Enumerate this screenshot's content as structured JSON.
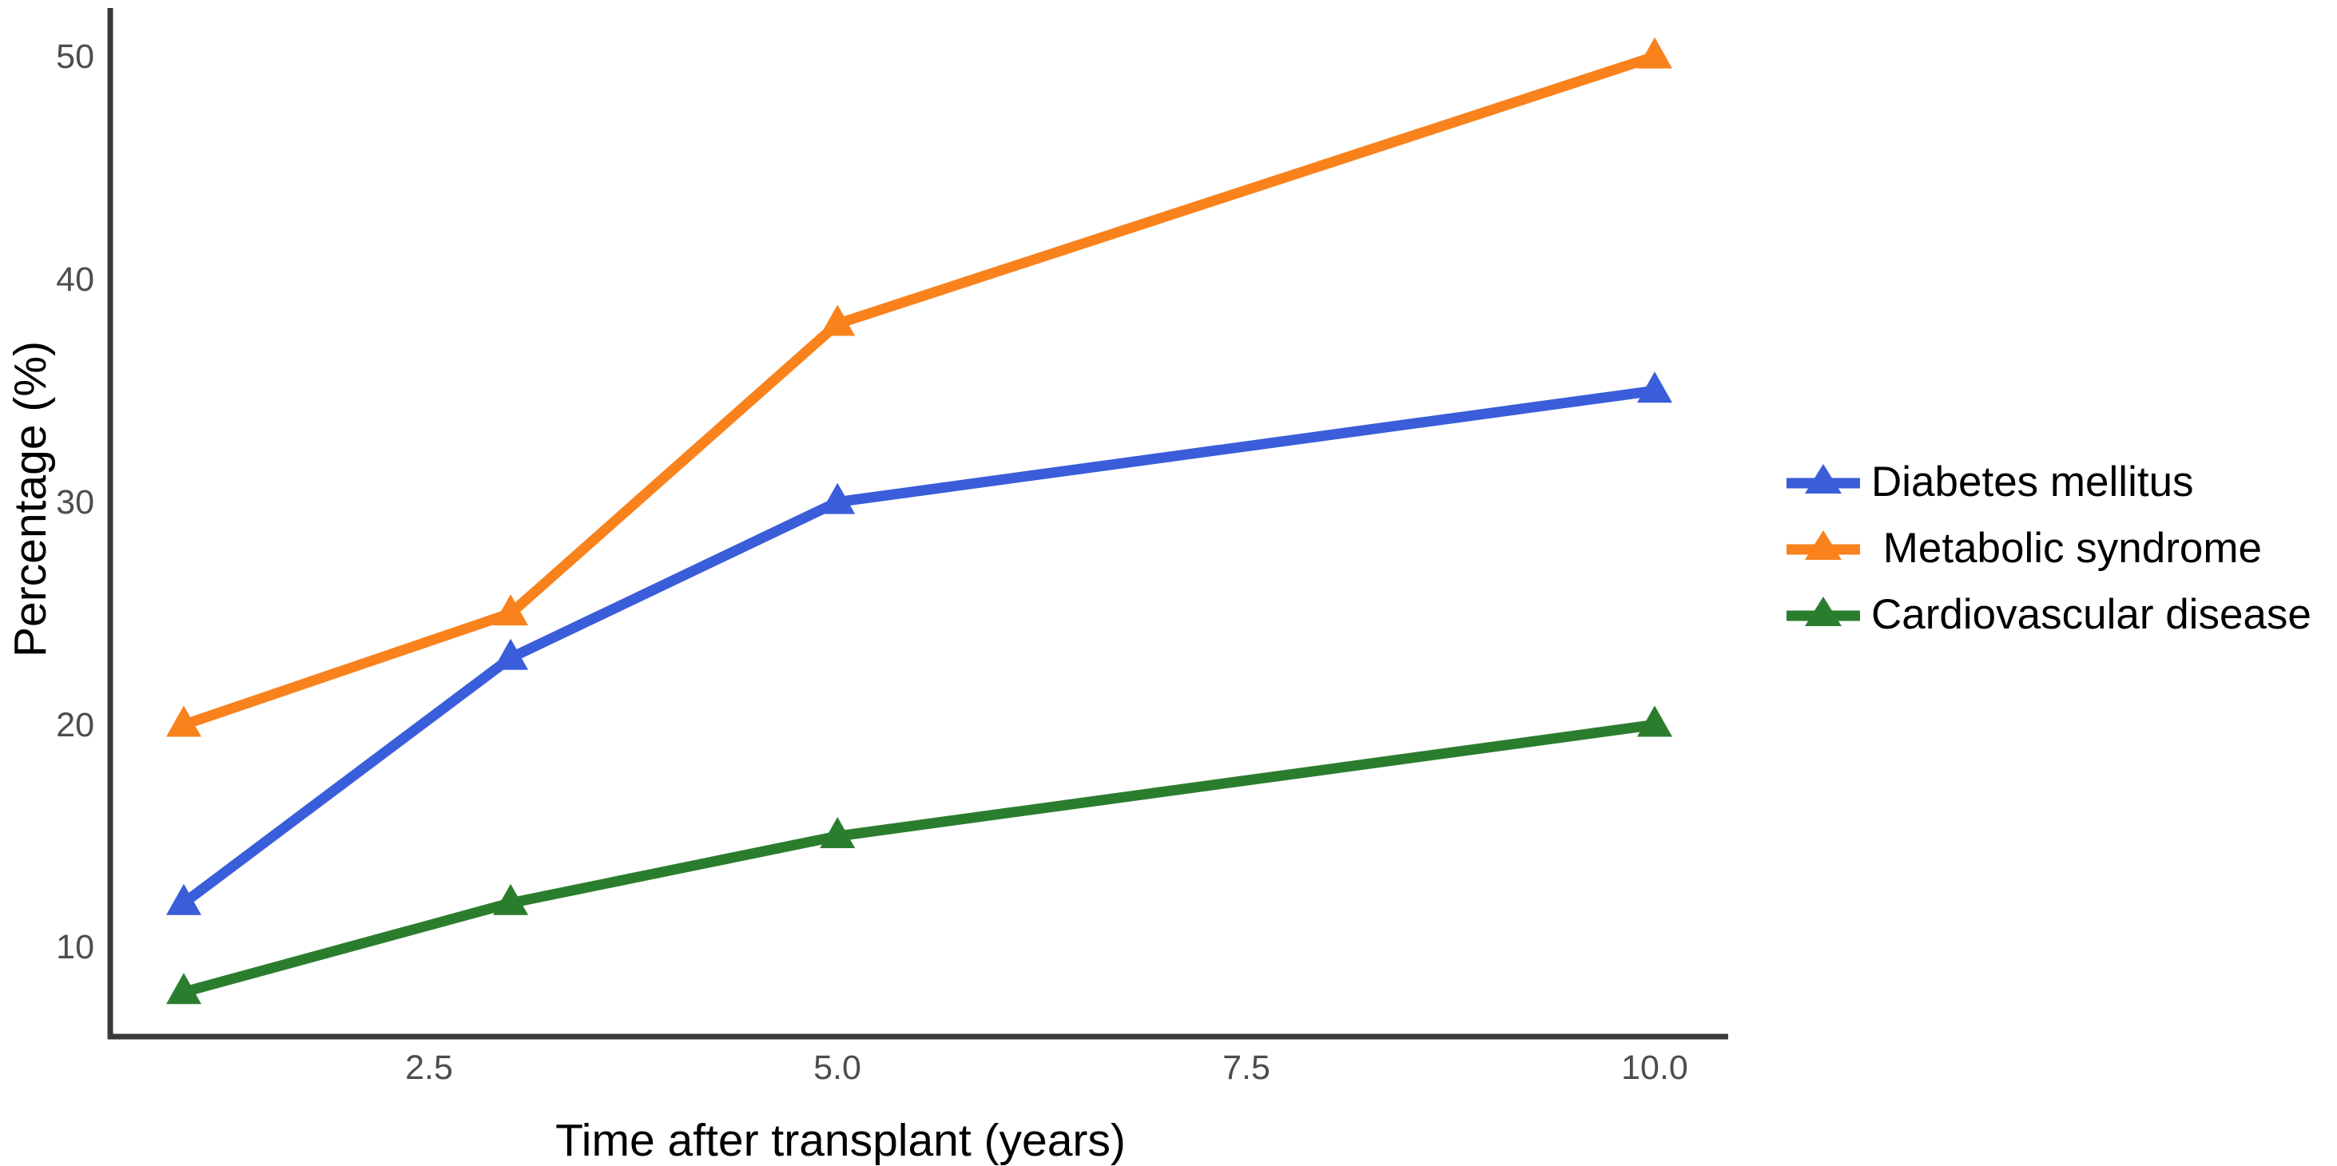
{
  "chart_data": {
    "type": "line",
    "title": "",
    "xlabel": "Time after transplant (years)",
    "ylabel": "Percentage (%)",
    "x": [
      1,
      3,
      5,
      10
    ],
    "series": [
      {
        "name": "Diabetes mellitus",
        "color": "#3A5DD9",
        "values": [
          12,
          23,
          30,
          35
        ]
      },
      {
        "name": " Metabolic syndrome",
        "color": "#F9821D",
        "values": [
          20,
          25,
          38,
          50
        ]
      },
      {
        "name": "Cardiovascular disease",
        "color": "#2B7D2E",
        "values": [
          8,
          12,
          15,
          20
        ]
      }
    ],
    "x_ticks": [
      2.5,
      5.0,
      7.5,
      10.0
    ],
    "x_tick_labels": [
      "2.5",
      "5.0",
      "7.5",
      "10.0"
    ],
    "y_ticks": [
      10,
      20,
      30,
      40,
      50
    ],
    "y_tick_labels": [
      "10",
      "20",
      "30",
      "40",
      "50"
    ],
    "xlim": [
      0.55,
      10.45
    ],
    "ylim": [
      6,
      52
    ],
    "grid": false,
    "legend_position": "right",
    "marker": "filled-triangle",
    "axis_color": "#3A3A3A",
    "tick_label_color": "#4D4D4D",
    "text_color": "#000000",
    "background_color": "#FFFFFF"
  }
}
